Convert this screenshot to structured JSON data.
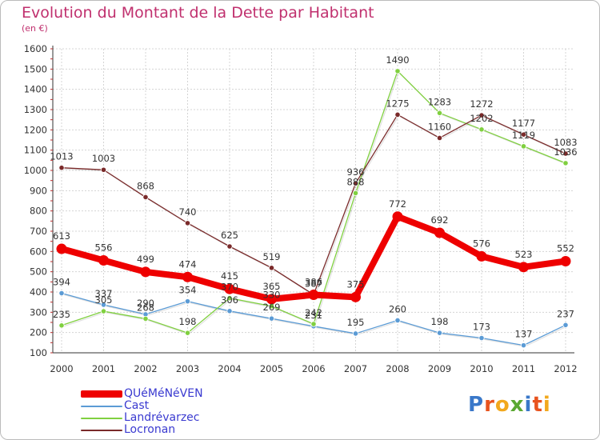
{
  "title": "Evolution du Montant de la Dette par Habitant",
  "subtitle": "(en €)",
  "logo": {
    "text": "Proxiti",
    "letters": [
      {
        "ch": "P",
        "color": "#3a78c9"
      },
      {
        "ch": "r",
        "color": "#e8531e"
      },
      {
        "ch": "o",
        "color": "#f2a81d"
      },
      {
        "ch": "x",
        "color": "#5aa832"
      },
      {
        "ch": "i",
        "color": "#3a78c9"
      },
      {
        "ch": "t",
        "color": "#e8531e"
      },
      {
        "ch": "i",
        "color": "#f2a81d"
      }
    ]
  },
  "chart_data": {
    "type": "line",
    "title": "Evolution du Montant de la Dette par Habitant",
    "subtitle": "(en €)",
    "xlabel": "",
    "ylabel": "",
    "categories": [
      "2000",
      "2001",
      "2002",
      "2003",
      "2004",
      "2005",
      "2006",
      "2007",
      "2008",
      "2009",
      "2010",
      "2011",
      "2012"
    ],
    "ylim": [
      100,
      1600
    ],
    "yticks": [
      100,
      200,
      300,
      400,
      500,
      600,
      700,
      800,
      900,
      1000,
      1100,
      1200,
      1300,
      1400,
      1500,
      1600
    ],
    "grid": true,
    "legend_position": "bottom-left",
    "series": [
      {
        "name": "QUéMéNéVEN",
        "color": "#ee0000",
        "emphasis": true,
        "values": [
          613,
          556,
          499,
          474,
          415,
          365,
          386,
          375,
          772,
          692,
          576,
          523,
          552
        ]
      },
      {
        "name": "Cast",
        "color": "#5b9bd5",
        "emphasis": false,
        "values": [
          394,
          337,
          290,
          354,
          306,
          269,
          231,
          195,
          260,
          198,
          173,
          137,
          237
        ]
      },
      {
        "name": "Landrévarzec",
        "color": "#80d040",
        "emphasis": false,
        "values": [
          235,
          305,
          268,
          198,
          370,
          330,
          242,
          888,
          1490,
          1283,
          1202,
          1119,
          1036
        ]
      },
      {
        "name": "Locronan",
        "color": "#7a2a2a",
        "emphasis": false,
        "values": [
          1013,
          1003,
          868,
          740,
          625,
          519,
          387,
          936,
          1275,
          1160,
          1272,
          1177,
          1083
        ]
      }
    ]
  }
}
